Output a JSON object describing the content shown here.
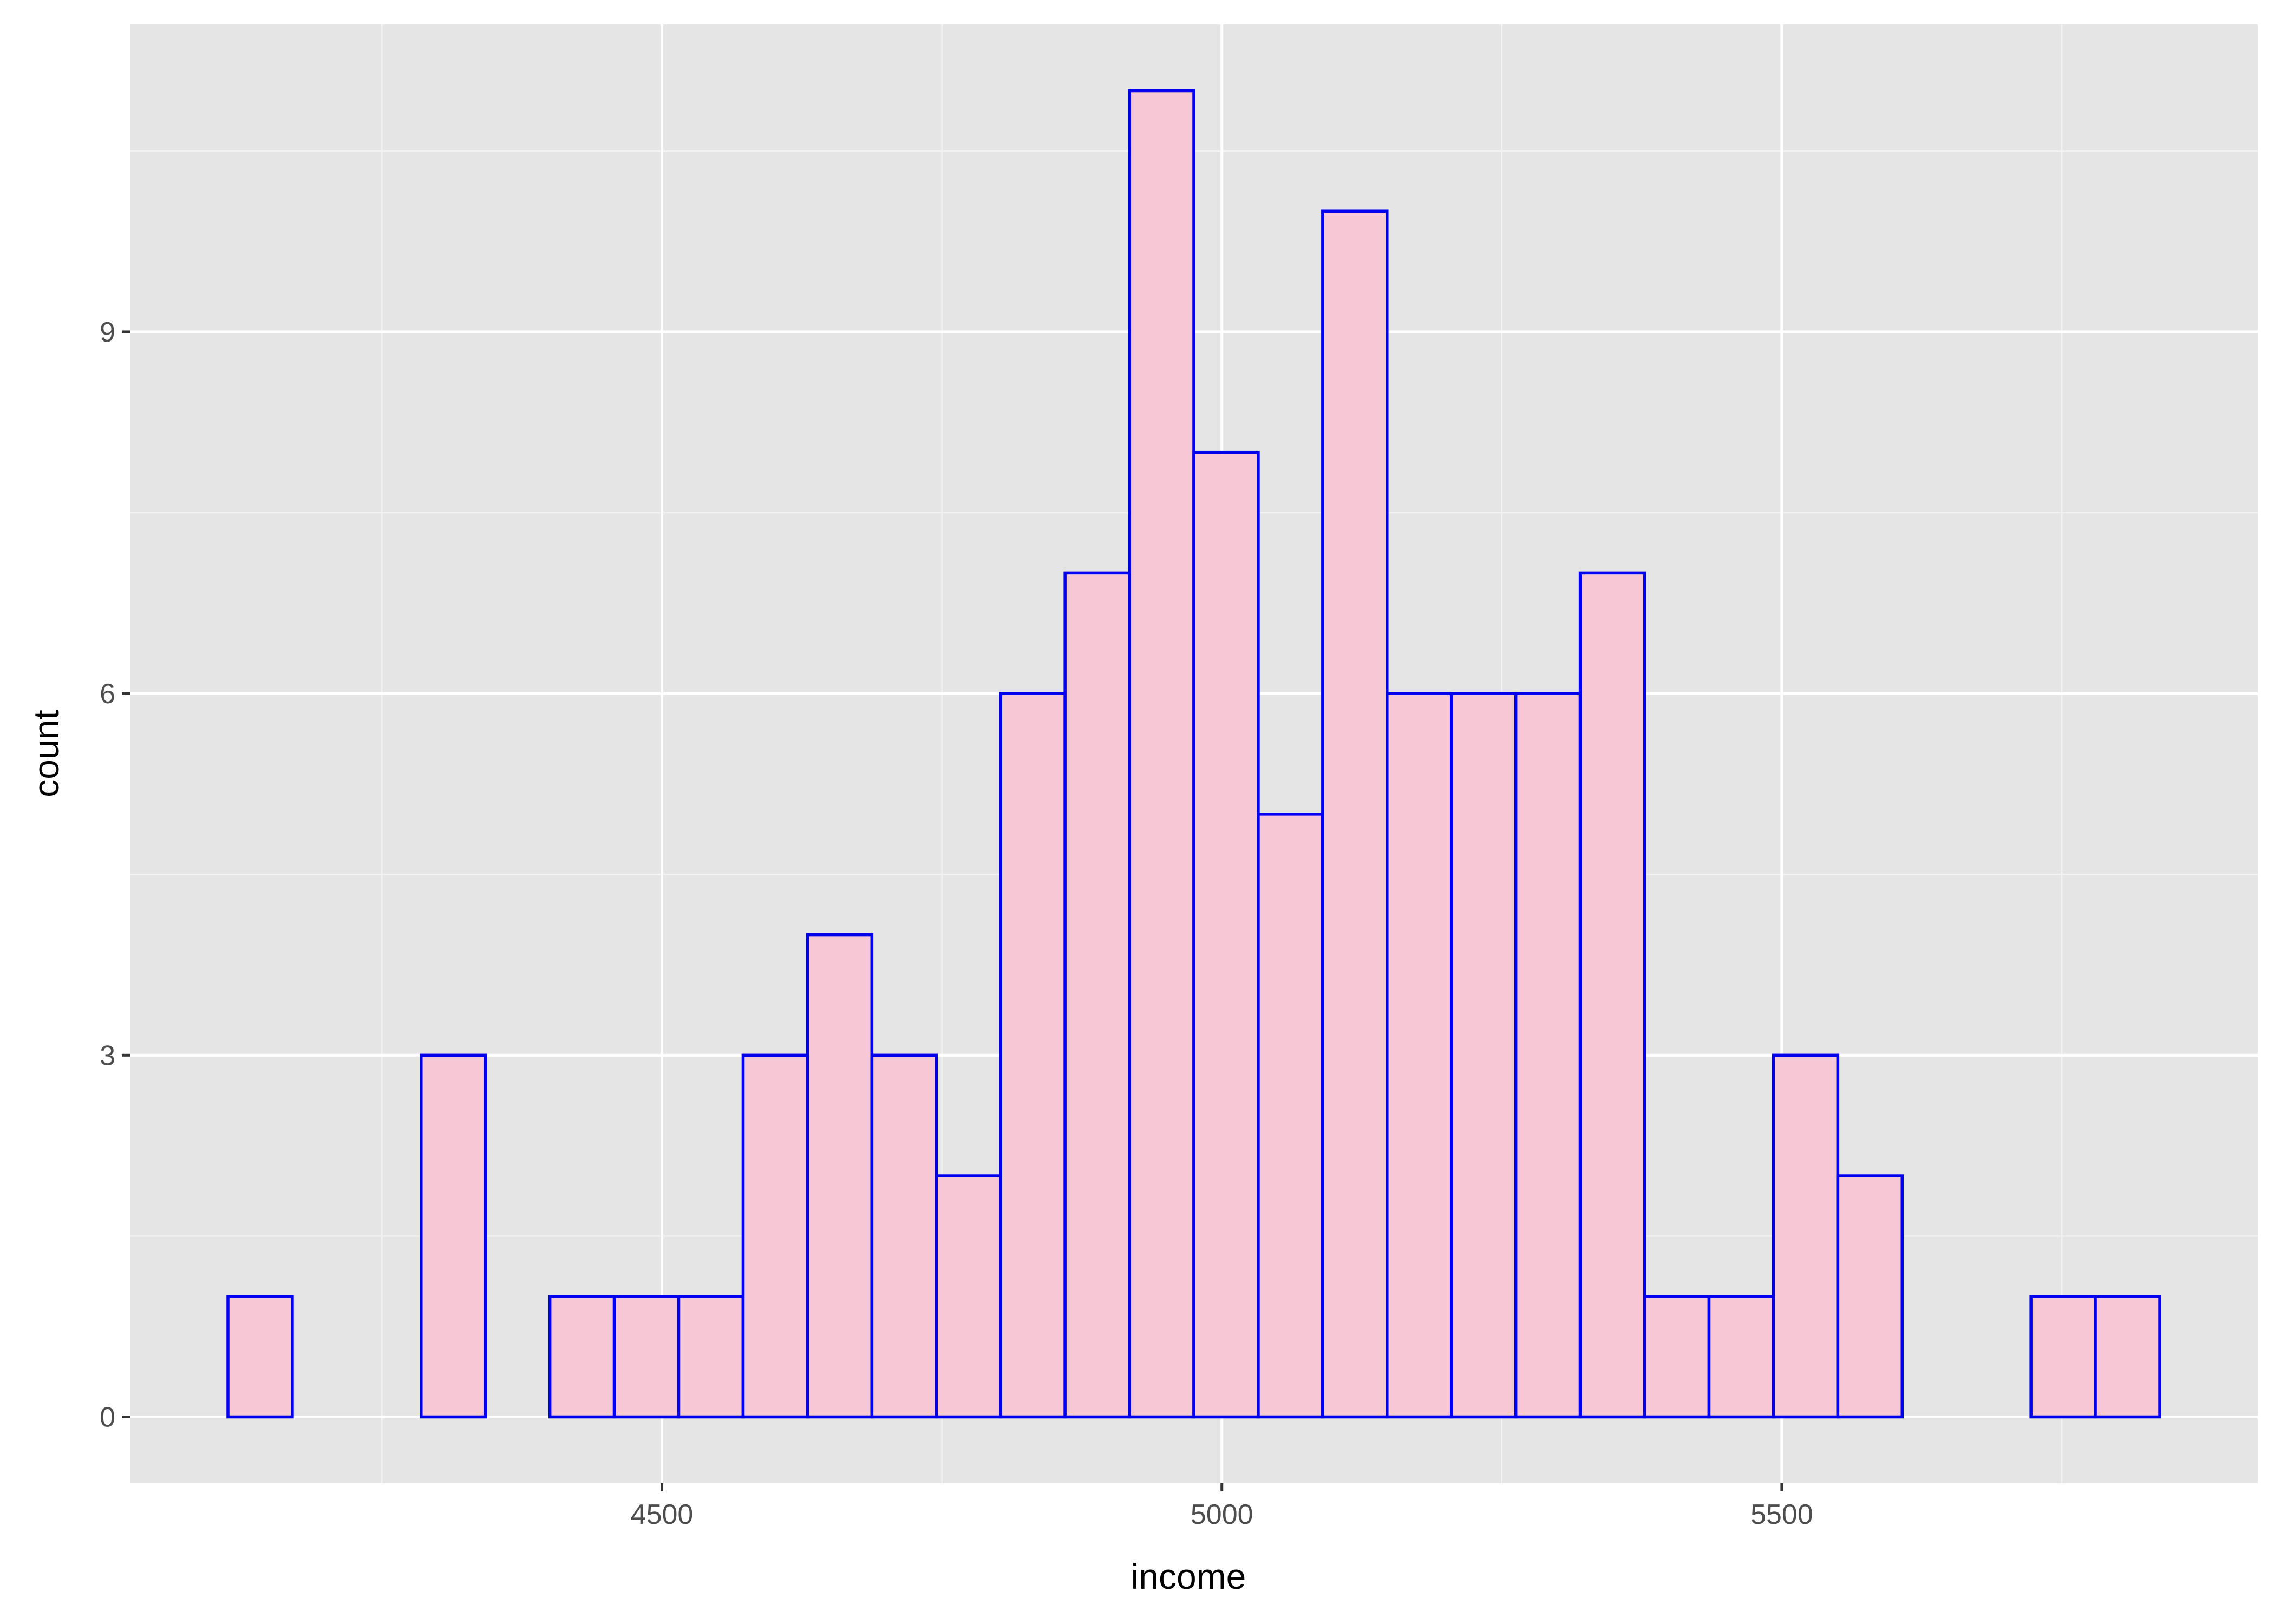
{
  "chart_data": {
    "type": "bar",
    "subtype": "histogram",
    "title": "",
    "xlabel": "income",
    "ylabel": "count",
    "bin_width": 57.5,
    "bin_start": 4112.5,
    "bins": [
      {
        "x0": 4112.5,
        "x1": 4170.0,
        "count": 1
      },
      {
        "x0": 4170.0,
        "x1": 4227.5,
        "count": 0
      },
      {
        "x0": 4227.5,
        "x1": 4285.0,
        "count": 0
      },
      {
        "x0": 4285.0,
        "x1": 4342.5,
        "count": 3
      },
      {
        "x0": 4342.5,
        "x1": 4400.0,
        "count": 0
      },
      {
        "x0": 4400.0,
        "x1": 4457.5,
        "count": 1
      },
      {
        "x0": 4457.5,
        "x1": 4515.0,
        "count": 1
      },
      {
        "x0": 4515.0,
        "x1": 4572.5,
        "count": 1
      },
      {
        "x0": 4572.5,
        "x1": 4630.0,
        "count": 3
      },
      {
        "x0": 4630.0,
        "x1": 4687.5,
        "count": 4
      },
      {
        "x0": 4687.5,
        "x1": 4745.0,
        "count": 3
      },
      {
        "x0": 4745.0,
        "x1": 4802.5,
        "count": 2
      },
      {
        "x0": 4802.5,
        "x1": 4860.0,
        "count": 6
      },
      {
        "x0": 4860.0,
        "x1": 4917.5,
        "count": 7
      },
      {
        "x0": 4917.5,
        "x1": 4975.0,
        "count": 11
      },
      {
        "x0": 4975.0,
        "x1": 5032.5,
        "count": 8
      },
      {
        "x0": 5032.5,
        "x1": 5090.0,
        "count": 5
      },
      {
        "x0": 5090.0,
        "x1": 5147.5,
        "count": 10
      },
      {
        "x0": 5147.5,
        "x1": 5205.0,
        "count": 6
      },
      {
        "x0": 5205.0,
        "x1": 5262.5,
        "count": 6
      },
      {
        "x0": 5262.5,
        "x1": 5320.0,
        "count": 6
      },
      {
        "x0": 5320.0,
        "x1": 5377.5,
        "count": 7
      },
      {
        "x0": 5377.5,
        "x1": 5435.0,
        "count": 1
      },
      {
        "x0": 5435.0,
        "x1": 5492.5,
        "count": 1
      },
      {
        "x0": 5492.5,
        "x1": 5550.0,
        "count": 3
      },
      {
        "x0": 5550.0,
        "x1": 5607.5,
        "count": 2
      },
      {
        "x0": 5607.5,
        "x1": 5665.0,
        "count": 0
      },
      {
        "x0": 5665.0,
        "x1": 5722.5,
        "count": 0
      },
      {
        "x0": 5722.5,
        "x1": 5780.0,
        "count": 1
      },
      {
        "x0": 5780.0,
        "x1": 5837.5,
        "count": 1
      }
    ],
    "xlim": [
      4025,
      5925
    ],
    "ylim": [
      -0.55,
      11.55
    ],
    "x_ticks": [
      4500,
      5000,
      5500
    ],
    "x_minor_ticks": [
      4250,
      4750,
      5250,
      5750
    ],
    "y_ticks": [
      0,
      3,
      6,
      9
    ],
    "y_minor_ticks": [
      1.5,
      4.5,
      7.5,
      10.5
    ],
    "grid": true,
    "legend": "none",
    "colors": {
      "panel_background": "#e5e5e5",
      "grid_major": "#ffffff",
      "grid_minor": "#f2f2f2",
      "bar_fill": "#f6c7d4",
      "bar_outline": "#0000ee",
      "tick": "#333333"
    }
  }
}
